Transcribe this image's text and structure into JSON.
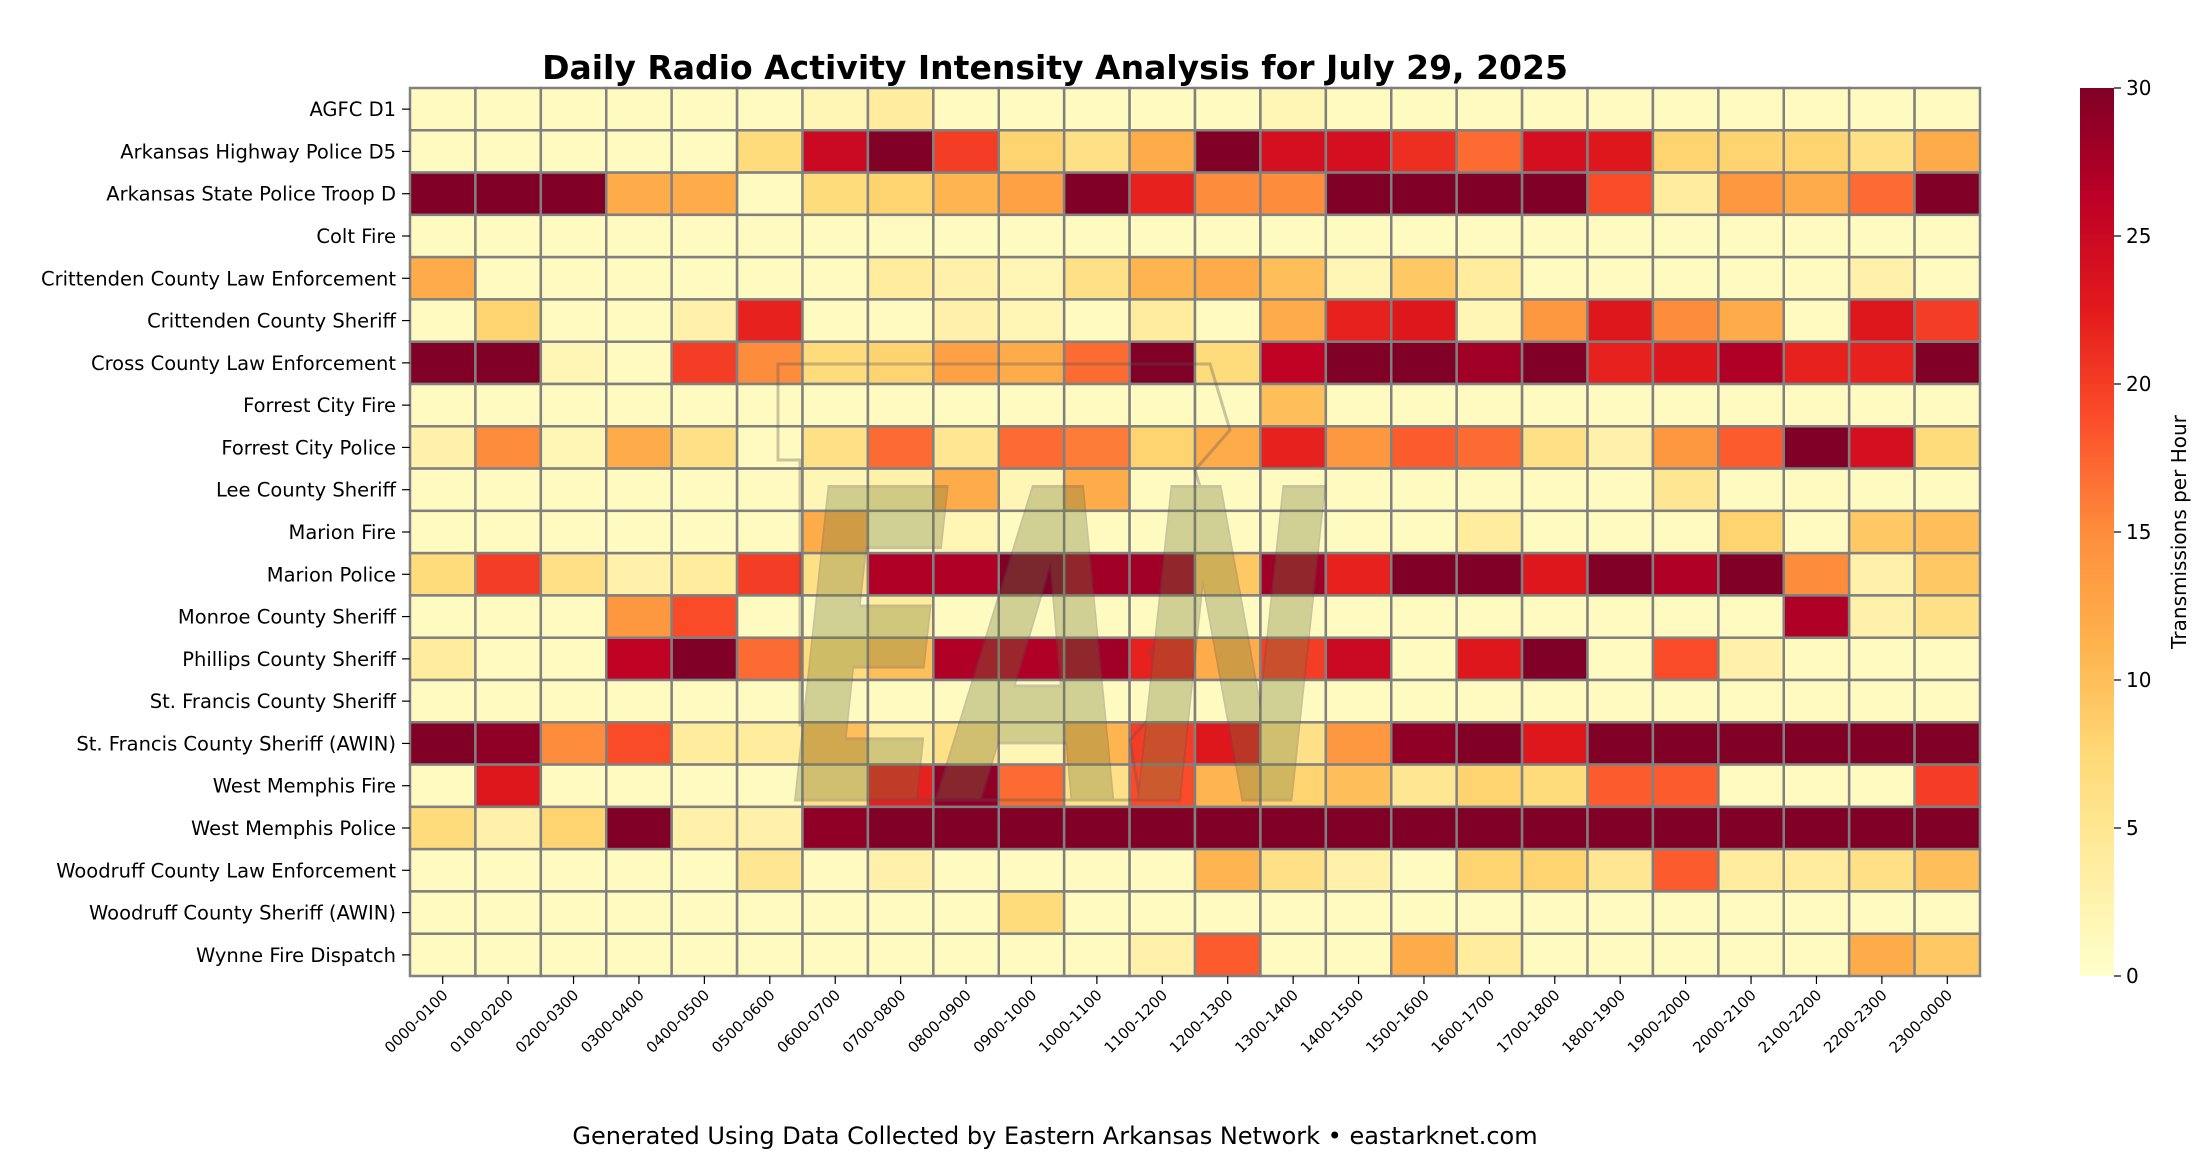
{
  "chart_data": {
    "type": "heatmap",
    "title": "Daily Radio Activity Intensity Analysis for July 29, 2025",
    "footer": "Generated Using Data Collected by Eastern Arkansas Network • eastarknet.com",
    "watermark": "EAN",
    "colorbar": {
      "label": "Transmissions per Hour",
      "min": 0,
      "max": 30,
      "ticks": [
        0,
        5,
        10,
        15,
        20,
        25,
        30
      ],
      "colormap": "YlOrRd"
    },
    "x_categories": [
      "0000-0100",
      "0100-0200",
      "0200-0300",
      "0300-0400",
      "0400-0500",
      "0500-0600",
      "0600-0700",
      "0700-0800",
      "0800-0900",
      "0900-1000",
      "1000-1100",
      "1100-1200",
      "1200-1300",
      "1300-1400",
      "1400-1500",
      "1500-1600",
      "1600-1700",
      "1700-1800",
      "1800-1900",
      "1900-2000",
      "2000-2100",
      "2100-2200",
      "2200-2300",
      "2300-0000"
    ],
    "y_categories": [
      "AGFC D1",
      "Arkansas Highway Police D5",
      "Arkansas State Police Troop D",
      "Colt Fire",
      "Crittenden County Law Enforcement",
      "Crittenden County Sheriff",
      "Cross County Law Enforcement",
      "Forrest City Fire",
      "Forrest City Police",
      "Lee County Sheriff",
      "Marion Fire",
      "Marion Police",
      "Monroe County Sheriff",
      "Phillips County Sheriff",
      "St. Francis County Sheriff",
      "St. Francis County Sheriff (AWIN)",
      "West Memphis Fire",
      "West Memphis Police",
      "Woodruff County Law Enforcement",
      "Woodruff County Sheriff (AWIN)",
      "Wynne Fire Dispatch"
    ],
    "values": [
      [
        1,
        1,
        1,
        1,
        1,
        1,
        2,
        4,
        1,
        1,
        1,
        1,
        1,
        2,
        1,
        1,
        1,
        1,
        1,
        1,
        1,
        1,
        1,
        1
      ],
      [
        1,
        1,
        1,
        1,
        1,
        7,
        25,
        30,
        20,
        8,
        6,
        12,
        30,
        24,
        24,
        21,
        17,
        24,
        23,
        8,
        8,
        8,
        6,
        12
      ],
      [
        30,
        30,
        30,
        12,
        12,
        1,
        7,
        8,
        11,
        13,
        30,
        22,
        15,
        15,
        30,
        30,
        30,
        30,
        19,
        4,
        14,
        12,
        17,
        30
      ],
      [
        1,
        1,
        1,
        1,
        1,
        1,
        1,
        1,
        1,
        1,
        1,
        1,
        1,
        1,
        1,
        1,
        1,
        1,
        1,
        1,
        1,
        1,
        1,
        1
      ],
      [
        12,
        1,
        1,
        1,
        1,
        1,
        1,
        4,
        3,
        2,
        6,
        11,
        12,
        10,
        2,
        9,
        4,
        1,
        1,
        1,
        1,
        1,
        3,
        1
      ],
      [
        1,
        8,
        1,
        1,
        3,
        22,
        1,
        1,
        3,
        2,
        1,
        4,
        1,
        12,
        22,
        23,
        2,
        14,
        23,
        15,
        12,
        1,
        23,
        20
      ],
      [
        30,
        30,
        2,
        1,
        20,
        15,
        7,
        8,
        13,
        12,
        17,
        30,
        7,
        26,
        30,
        30,
        28,
        30,
        22,
        23,
        27,
        22,
        22,
        30
      ],
      [
        1,
        1,
        1,
        1,
        1,
        1,
        1,
        1,
        1,
        1,
        1,
        1,
        1,
        10,
        1,
        1,
        1,
        1,
        1,
        1,
        1,
        1,
        1,
        1
      ],
      [
        3,
        15,
        2,
        12,
        6,
        1,
        6,
        17,
        5,
        17,
        16,
        8,
        12,
        22,
        14,
        18,
        17,
        6,
        3,
        14,
        18,
        30,
        24,
        7
      ],
      [
        1,
        1,
        1,
        1,
        1,
        1,
        2,
        3,
        12,
        2,
        12,
        1,
        1,
        1,
        1,
        1,
        1,
        1,
        1,
        5,
        1,
        1,
        1,
        1
      ],
      [
        1,
        1,
        1,
        1,
        1,
        1,
        12,
        1,
        2,
        1,
        1,
        1,
        1,
        1,
        1,
        1,
        4,
        1,
        1,
        1,
        8,
        1,
        9,
        10
      ],
      [
        7,
        20,
        6,
        3,
        4,
        20,
        6,
        27,
        27,
        30,
        28,
        28,
        9,
        28,
        22,
        30,
        30,
        23,
        30,
        27,
        30,
        15,
        3,
        9
      ],
      [
        1,
        1,
        1,
        14,
        19,
        1,
        1,
        4,
        1,
        1,
        1,
        1,
        1,
        1,
        1,
        1,
        1,
        1,
        1,
        1,
        1,
        27,
        3,
        6
      ],
      [
        4,
        1,
        1,
        26,
        30,
        17,
        7,
        10,
        27,
        27,
        28,
        22,
        12,
        20,
        25,
        1,
        23,
        30,
        1,
        19,
        3,
        1,
        1,
        1
      ],
      [
        1,
        1,
        1,
        1,
        1,
        1,
        1,
        1,
        1,
        1,
        1,
        1,
        1,
        1,
        1,
        1,
        1,
        1,
        1,
        1,
        1,
        1,
        1,
        1
      ],
      [
        30,
        29,
        15,
        19,
        4,
        4,
        10,
        4,
        6,
        2,
        11,
        20,
        23,
        6,
        14,
        29,
        30,
        23,
        30,
        30,
        30,
        30,
        30,
        30
      ],
      [
        1,
        23,
        1,
        1,
        1,
        1,
        6,
        22,
        29,
        17,
        6,
        19,
        11,
        8,
        10,
        5,
        8,
        7,
        18,
        18,
        1,
        1,
        1,
        20
      ],
      [
        7,
        3,
        8,
        30,
        3,
        3,
        29,
        30,
        30,
        30,
        30,
        30,
        30,
        30,
        30,
        30,
        30,
        30,
        30,
        30,
        30,
        30,
        30,
        30
      ],
      [
        1,
        1,
        1,
        1,
        1,
        5,
        1,
        3,
        1,
        1,
        1,
        1,
        11,
        6,
        3,
        1,
        8,
        8,
        5,
        18,
        4,
        4,
        6,
        10
      ],
      [
        1,
        1,
        1,
        1,
        1,
        1,
        1,
        1,
        1,
        7,
        1,
        1,
        1,
        1,
        1,
        1,
        1,
        1,
        1,
        1,
        1,
        1,
        1,
        1
      ],
      [
        1,
        1,
        1,
        1,
        1,
        1,
        1,
        1,
        1,
        1,
        1,
        3,
        18,
        1,
        1,
        12,
        4,
        1,
        1,
        1,
        1,
        1,
        12,
        9
      ]
    ]
  }
}
